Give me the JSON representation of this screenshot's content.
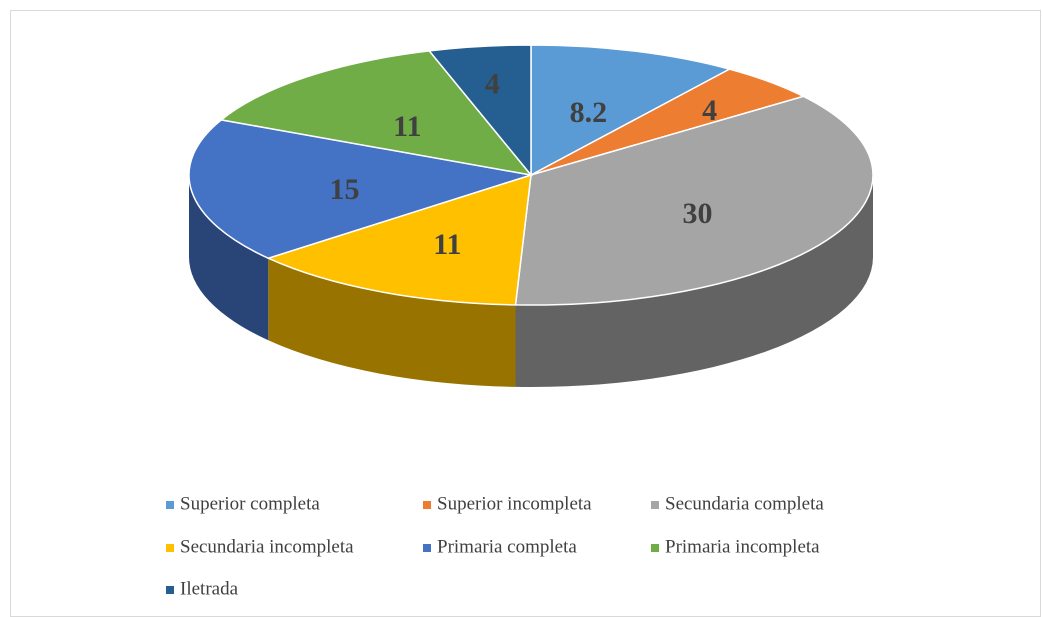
{
  "chart_data": {
    "type": "pie3d",
    "categories": [
      "Superior completa",
      "Superior incompleta",
      "Secundaria completa",
      "Secundaria incompleta",
      "Primaria completa",
      "Primaria incompleta",
      "Iletrada"
    ],
    "values": [
      8.2,
      4,
      30,
      11,
      15,
      11,
      4
    ],
    "colors": [
      "#5b9bd5",
      "#ed7d31",
      "#a5a5a5",
      "#ffc000",
      "#4472c4",
      "#70ad47",
      "#255e91"
    ],
    "legend": "bottom"
  }
}
